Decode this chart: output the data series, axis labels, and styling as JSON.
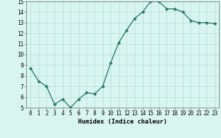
{
  "x": [
    0,
    1,
    2,
    3,
    4,
    5,
    6,
    7,
    8,
    9,
    10,
    11,
    12,
    13,
    14,
    15,
    16,
    17,
    18,
    19,
    20,
    21,
    22,
    23
  ],
  "y": [
    8.7,
    7.5,
    7.0,
    5.3,
    5.8,
    5.0,
    5.8,
    6.4,
    6.3,
    7.0,
    9.2,
    11.1,
    12.3,
    13.4,
    14.0,
    15.0,
    15.0,
    14.3,
    14.3,
    14.0,
    13.2,
    13.0,
    13.0,
    12.9
  ],
  "line_color": "#2d7a6e",
  "marker": "D",
  "marker_size": 1.8,
  "linewidth": 1.0,
  "bg_color": "#d9f5f0",
  "grid_color": "#b0ddd5",
  "xlabel": "Humidex (Indice chaleur)",
  "xlim": [
    -0.5,
    23.5
  ],
  "ylim": [
    5,
    15
  ],
  "yticks": [
    5,
    6,
    7,
    8,
    9,
    10,
    11,
    12,
    13,
    14,
    15
  ],
  "xticks": [
    0,
    1,
    2,
    3,
    4,
    5,
    6,
    7,
    8,
    9,
    10,
    11,
    12,
    13,
    14,
    15,
    16,
    17,
    18,
    19,
    20,
    21,
    22,
    23
  ],
  "tick_fontsize": 5.5,
  "label_fontsize": 6.5,
  "spine_color": "#666666"
}
